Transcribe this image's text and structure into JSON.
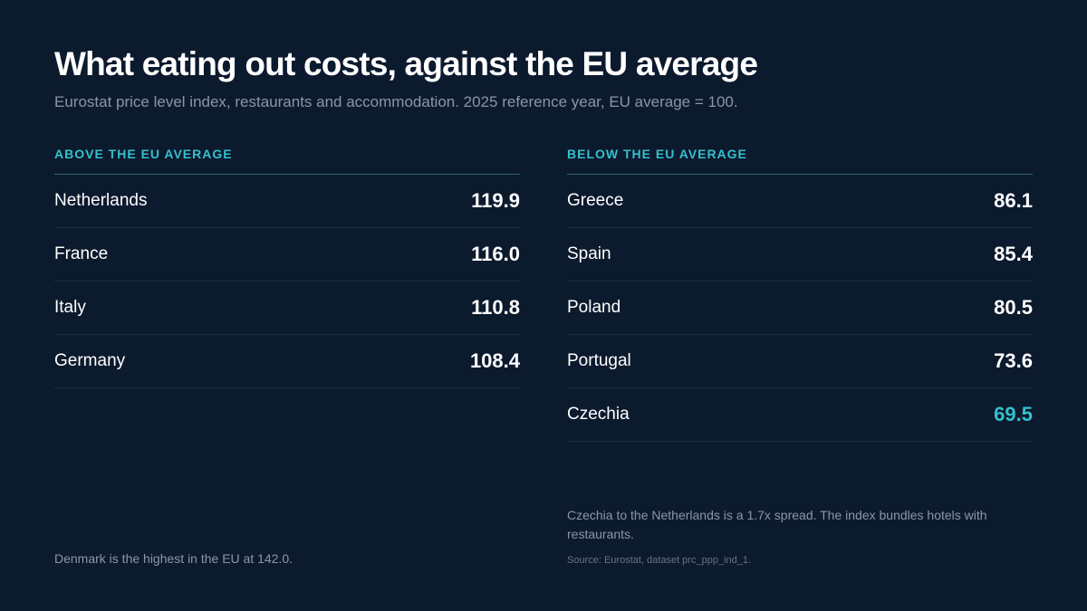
{
  "title": "What eating out costs, against the EU average",
  "subtitle": "Eurostat price level index, restaurants and accommodation. 2025 reference year, EU average = 100.",
  "chart_data": {
    "type": "table",
    "title": "What eating out costs, against the EU average",
    "subtitle": "Eurostat price level index, restaurants and accommodation. 2025 reference year, EU average = 100.",
    "above": {
      "heading": "ABOVE THE EU AVERAGE",
      "rows": [
        {
          "country": "Netherlands",
          "value": "119.9"
        },
        {
          "country": "France",
          "value": "116.0"
        },
        {
          "country": "Italy",
          "value": "110.8"
        },
        {
          "country": "Germany",
          "value": "108.4"
        }
      ]
    },
    "below": {
      "heading": "BELOW THE EU AVERAGE",
      "rows": [
        {
          "country": "Greece",
          "value": "86.1"
        },
        {
          "country": "Spain",
          "value": "85.4"
        },
        {
          "country": "Poland",
          "value": "80.5"
        },
        {
          "country": "Portugal",
          "value": "73.6"
        },
        {
          "country": "Czechia",
          "value": "69.5"
        }
      ]
    },
    "highlighted_country": "Czechia"
  },
  "colors": {
    "background": "#0c1a2e",
    "accent": "#35c0cc",
    "text": "#ffffff",
    "muted": "#8a96a8"
  },
  "notes": {
    "left": "Denmark is the highest in the EU at 142.0.",
    "right": "Czechia to the Netherlands is a 1.7x spread. The index bundles hotels with restaurants.",
    "source": "Source: Eurostat, dataset prc_ppp_ind_1."
  }
}
